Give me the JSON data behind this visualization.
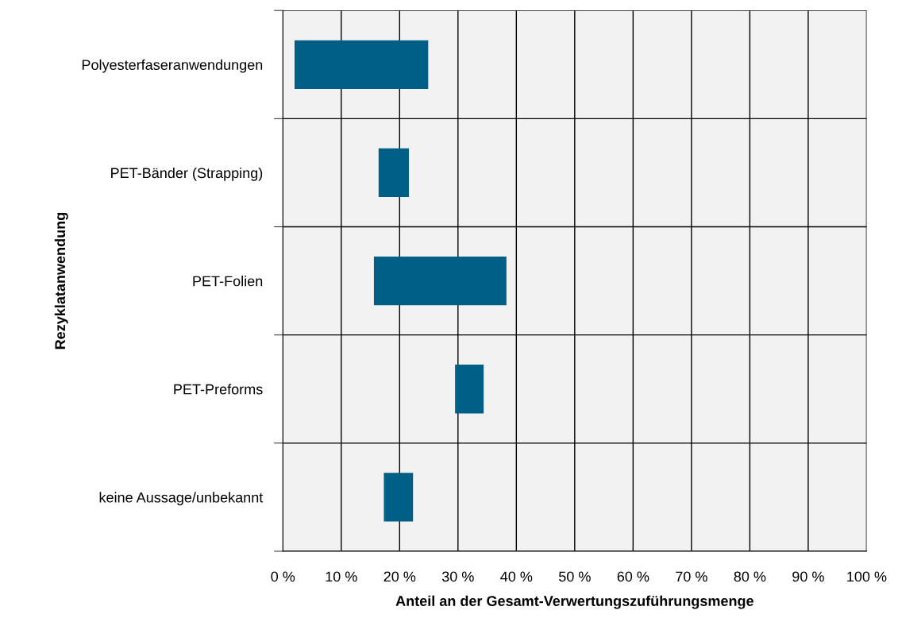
{
  "chart_data": {
    "type": "bar",
    "orientation": "horizontal",
    "categories": [
      "Polyesterfaseranwendungen",
      "PET-Bänder (Strapping)",
      "PET-Folien",
      "PET-Preforms",
      "keine Aussage/unbekannt"
    ],
    "base": [
      2.0,
      16.4,
      15.6,
      29.5,
      17.3
    ],
    "values": [
      22.9,
      5.2,
      22.7,
      4.9,
      5.0
    ],
    "color": "#005f87",
    "xlabel": "Anteil an der Gesamt-Verwertungszuführungsmenge",
    "ylabel": "Rezyklatanwendung",
    "xlim": [
      0,
      100
    ],
    "xticks": [
      {
        "value": 0,
        "label": "0 %"
      },
      {
        "value": 10,
        "label": "10 %"
      },
      {
        "value": 20,
        "label": "20 %"
      },
      {
        "value": 30,
        "label": "30 %"
      },
      {
        "value": 40,
        "label": "40 %"
      },
      {
        "value": 50,
        "label": "50 %"
      },
      {
        "value": 60,
        "label": "60 %"
      },
      {
        "value": 70,
        "label": "70 %"
      },
      {
        "value": 80,
        "label": "80 %"
      },
      {
        "value": 90,
        "label": "90 %"
      },
      {
        "value": 100,
        "label": "100 %"
      }
    ],
    "grid": true
  }
}
